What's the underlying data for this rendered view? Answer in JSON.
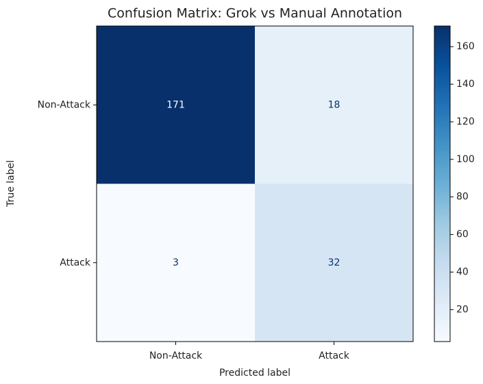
{
  "chart_data": {
    "type": "heatmap",
    "title": "Confusion Matrix: Grok vs Manual Annotation",
    "x_label": "Predicted label",
    "y_label": "True label",
    "x_categories": [
      "Non-Attack",
      "Attack"
    ],
    "y_categories": [
      "Non-Attack",
      "Attack"
    ],
    "values": [
      [
        171,
        18
      ],
      [
        3,
        32
      ]
    ],
    "colormap": "Blues",
    "zlim": [
      3,
      171
    ],
    "zticks": [
      20,
      40,
      60,
      80,
      100,
      120,
      140,
      160
    ]
  }
}
